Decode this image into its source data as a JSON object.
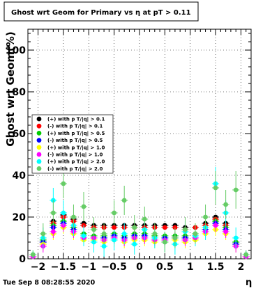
{
  "chart_data": {
    "type": "scatter",
    "title": "Ghost wrt Geom for Primary vs   η at pT > 0.11",
    "xlabel": "η",
    "ylabel": "Ghost wrt Geom(%)",
    "xlim": [
      -2.2,
      2.2
    ],
    "ylim": [
      0,
      110
    ],
    "xticks": [
      "−2",
      "−1.5",
      "−1",
      "−0.5",
      "0",
      "0.5",
      "1",
      "1.5",
      "2"
    ],
    "yticks": [
      "0",
      "20",
      "40",
      "60",
      "80",
      "100"
    ],
    "grid": true,
    "legend_position": "left",
    "footer": "Tue Sep  8 08:28:55 2020",
    "series": [
      {
        "name": "(+) with p T/|q| > 0.1",
        "color": "#000000",
        "x": [
          -2.1,
          -1.9,
          -1.7,
          -1.5,
          -1.3,
          -1.1,
          -0.9,
          -0.7,
          -0.5,
          -0.3,
          -0.1,
          0.1,
          0.3,
          0.5,
          0.7,
          0.9,
          1.1,
          1.3,
          1.5,
          1.7,
          1.9,
          2.1
        ],
        "y": [
          1,
          8,
          18,
          21,
          19,
          17,
          16,
          16,
          16,
          16,
          16,
          16,
          16,
          16,
          16,
          15,
          15,
          17,
          20,
          17,
          8,
          1
        ],
        "err": [
          1,
          1,
          1,
          1,
          1,
          1,
          1,
          1,
          1,
          1,
          1,
          1,
          1,
          1,
          1,
          1,
          1,
          1,
          1,
          1,
          1,
          1
        ]
      },
      {
        "name": "(-) with p T/|q| > 0.1",
        "color": "#ff0000",
        "x": [
          -2.1,
          -1.9,
          -1.7,
          -1.5,
          -1.3,
          -1.1,
          -0.9,
          -0.7,
          -0.5,
          -0.3,
          -0.1,
          0.1,
          0.3,
          0.5,
          0.7,
          0.9,
          1.1,
          1.3,
          1.5,
          1.7,
          1.9,
          2.1
        ],
        "y": [
          1,
          7,
          17,
          20,
          18,
          16,
          15,
          15,
          15,
          15,
          15,
          15,
          15,
          15,
          15,
          14,
          15,
          16,
          19,
          16,
          7,
          1
        ],
        "err": [
          1,
          1,
          1,
          1,
          1,
          1,
          1,
          1,
          1,
          1,
          1,
          1,
          1,
          1,
          1,
          1,
          1,
          1,
          1,
          1,
          1,
          1
        ]
      },
      {
        "name": "(+) with p T/|q| > 0.5",
        "color": "#00cc00",
        "x": [
          -2.1,
          -1.9,
          -1.7,
          -1.5,
          -1.3,
          -1.1,
          -0.9,
          -0.7,
          -0.5,
          -0.3,
          -0.1,
          0.1,
          0.3,
          0.5,
          0.7,
          0.9,
          1.1,
          1.3,
          1.5,
          1.7,
          1.9,
          2.1
        ],
        "y": [
          1,
          9,
          16,
          18,
          15,
          12,
          11,
          11,
          12,
          11,
          12,
          12,
          11,
          11,
          11,
          11,
          12,
          15,
          18,
          15,
          8,
          1
        ],
        "err": [
          1,
          2,
          2,
          2,
          2,
          2,
          2,
          2,
          2,
          2,
          2,
          2,
          2,
          2,
          2,
          2,
          2,
          2,
          2,
          2,
          2,
          1
        ]
      },
      {
        "name": "(-) with p T/|q| > 0.5",
        "color": "#0000ff",
        "x": [
          -2.1,
          -1.9,
          -1.7,
          -1.5,
          -1.3,
          -1.1,
          -0.9,
          -0.7,
          -0.5,
          -0.3,
          -0.1,
          0.1,
          0.3,
          0.5,
          0.7,
          0.9,
          1.1,
          1.3,
          1.5,
          1.7,
          1.9,
          2.1
        ],
        "y": [
          1,
          8,
          15,
          17,
          14,
          11,
          10,
          10,
          11,
          10,
          11,
          11,
          10,
          10,
          10,
          10,
          11,
          14,
          17,
          14,
          7,
          1
        ],
        "err": [
          1,
          2,
          2,
          2,
          2,
          2,
          2,
          2,
          2,
          2,
          2,
          2,
          2,
          2,
          2,
          2,
          2,
          2,
          2,
          2,
          2,
          1
        ]
      },
      {
        "name": "(+) with p T/|q| > 1.0",
        "color": "#ffff00",
        "x": [
          -2.1,
          -1.9,
          -1.7,
          -1.5,
          -1.3,
          -1.1,
          -0.9,
          -0.7,
          -0.5,
          -0.3,
          -0.1,
          0.1,
          0.3,
          0.5,
          0.7,
          0.9,
          1.1,
          1.3,
          1.5,
          1.7,
          1.9,
          2.1
        ],
        "y": [
          1,
          7,
          12,
          15,
          12,
          9,
          9,
          8,
          9,
          8,
          9,
          9,
          8,
          8,
          9,
          8,
          9,
          12,
          14,
          12,
          6,
          1
        ],
        "err": [
          1,
          3,
          3,
          3,
          3,
          3,
          3,
          3,
          3,
          3,
          3,
          3,
          3,
          3,
          3,
          3,
          3,
          3,
          3,
          3,
          3,
          1
        ]
      },
      {
        "name": "(-) with p T/|q| > 1.0",
        "color": "#ff00ff",
        "x": [
          -2.1,
          -1.9,
          -1.7,
          -1.5,
          -1.3,
          -1.1,
          -0.9,
          -0.7,
          -0.5,
          -0.3,
          -0.1,
          0.1,
          0.3,
          0.5,
          0.7,
          0.9,
          1.1,
          1.3,
          1.5,
          1.7,
          1.9,
          2.1
        ],
        "y": [
          1,
          6,
          13,
          16,
          13,
          10,
          10,
          9,
          10,
          9,
          10,
          10,
          9,
          9,
          10,
          9,
          10,
          13,
          16,
          13,
          6,
          1
        ],
        "err": [
          1,
          3,
          3,
          3,
          3,
          3,
          3,
          3,
          3,
          3,
          3,
          3,
          3,
          3,
          3,
          3,
          3,
          3,
          3,
          3,
          3,
          1
        ]
      },
      {
        "name": "(+) with p T/|q| > 2.0",
        "color": "#00ffff",
        "x": [
          -2.1,
          -1.9,
          -1.7,
          -1.5,
          -1.3,
          -1.1,
          -0.9,
          -0.7,
          -0.5,
          -0.3,
          -0.1,
          0.1,
          0.3,
          0.5,
          0.7,
          0.9,
          1.1,
          1.3,
          1.5,
          1.7,
          1.9,
          2.1
        ],
        "y": [
          2,
          10,
          28,
          22,
          16,
          11,
          8,
          6,
          9,
          12,
          7,
          14,
          10,
          8,
          7,
          13,
          11,
          15,
          36,
          22,
          10,
          2
        ],
        "err": [
          2,
          5,
          6,
          6,
          5,
          5,
          5,
          5,
          5,
          5,
          5,
          5,
          5,
          5,
          5,
          5,
          5,
          6,
          8,
          6,
          5,
          2
        ]
      },
      {
        "name": "(-) with p T/|q| > 2.0",
        "color": "#66cc66",
        "x": [
          -2.1,
          -1.9,
          -1.7,
          -1.5,
          -1.3,
          -1.1,
          -0.9,
          -0.7,
          -0.5,
          -0.3,
          -0.1,
          0.1,
          0.3,
          0.5,
          0.7,
          0.9,
          1.1,
          1.3,
          1.5,
          1.7,
          1.9,
          2.1
        ],
        "y": [
          2,
          12,
          22,
          36,
          20,
          25,
          14,
          12,
          22,
          28,
          15,
          19,
          12,
          8,
          10,
          14,
          12,
          20,
          34,
          26,
          33,
          2
        ],
        "err": [
          2,
          5,
          6,
          7,
          6,
          7,
          6,
          5,
          6,
          7,
          6,
          6,
          5,
          5,
          5,
          6,
          5,
          6,
          8,
          7,
          9,
          2
        ]
      }
    ]
  }
}
